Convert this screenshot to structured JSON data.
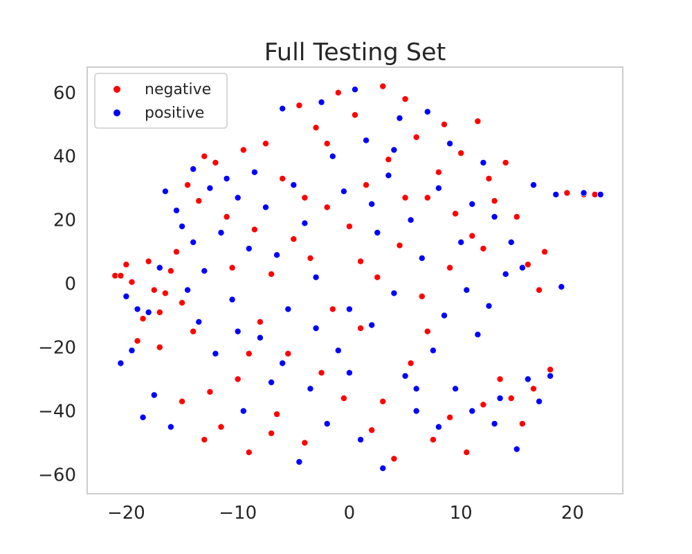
{
  "chart_data": {
    "type": "scatter",
    "title": "Full Testing Set",
    "xlabel": "",
    "ylabel": "",
    "xlim": [
      -23.5,
      24.5
    ],
    "ylim": [
      -66,
      68
    ],
    "xticks": [
      -20,
      -10,
      0,
      10,
      20
    ],
    "xtick_labels": [
      "−20",
      "−10",
      "0",
      "10",
      "20"
    ],
    "yticks": [
      60,
      40,
      20,
      0,
      -20,
      -40,
      -60
    ],
    "ytick_labels": [
      "60",
      "40",
      "20",
      "0",
      "−20",
      "−40",
      "−60"
    ],
    "grid": false,
    "legend_position": "top-left",
    "series": [
      {
        "name": "negative",
        "color": "#ff0000",
        "points": [
          [
            -21,
            2.5
          ],
          [
            -20.5,
            2.5
          ],
          [
            -20,
            6
          ],
          [
            -19.5,
            0.5
          ],
          [
            -19,
            -18
          ],
          [
            -18.5,
            -11
          ],
          [
            -18,
            7
          ],
          [
            -17.5,
            -2
          ],
          [
            -17,
            -20
          ],
          [
            -16.5,
            -3
          ],
          [
            -16,
            4
          ],
          [
            -15.5,
            10
          ],
          [
            -15,
            -6
          ],
          [
            -14.5,
            31
          ],
          [
            -14,
            -15
          ],
          [
            -13.5,
            26
          ],
          [
            -13,
            40
          ],
          [
            -12.5,
            -34
          ],
          [
            -12,
            38
          ],
          [
            -11.5,
            -45
          ],
          [
            -11,
            21
          ],
          [
            -10.5,
            5
          ],
          [
            -10,
            -30
          ],
          [
            -9.5,
            42
          ],
          [
            -9,
            -53
          ],
          [
            -8.5,
            17
          ],
          [
            -8,
            -12
          ],
          [
            -7.5,
            44
          ],
          [
            -7,
            3
          ],
          [
            -6.5,
            -41
          ],
          [
            -6,
            33
          ],
          [
            -5.5,
            -22
          ],
          [
            -5,
            14
          ],
          [
            -4.5,
            56
          ],
          [
            -4,
            -50
          ],
          [
            -3.5,
            8
          ],
          [
            -3,
            49
          ],
          [
            -2.5,
            -28
          ],
          [
            -2,
            24
          ],
          [
            -1.5,
            -8
          ],
          [
            -1,
            60
          ],
          [
            -0.5,
            -36
          ],
          [
            0,
            18
          ],
          [
            0.5,
            53
          ],
          [
            1,
            -14
          ],
          [
            1.5,
            31
          ],
          [
            2,
            -46
          ],
          [
            2.5,
            2
          ],
          [
            3,
            62
          ],
          [
            3.5,
            39
          ],
          [
            4,
            -55
          ],
          [
            4.5,
            12
          ],
          [
            5,
            58
          ],
          [
            5.5,
            -25
          ],
          [
            6,
            46
          ],
          [
            6.5,
            -4
          ],
          [
            7,
            27
          ],
          [
            7.5,
            -49
          ],
          [
            8,
            35
          ],
          [
            8.5,
            50
          ],
          [
            9,
            -42
          ],
          [
            9.5,
            22
          ],
          [
            10,
            41
          ],
          [
            10.5,
            -53
          ],
          [
            11,
            15
          ],
          [
            11.5,
            51
          ],
          [
            12,
            -38
          ],
          [
            12.5,
            33
          ],
          [
            13,
            26
          ],
          [
            13.5,
            -30
          ],
          [
            14,
            38
          ],
          [
            14.5,
            -36
          ],
          [
            15,
            21
          ],
          [
            15.5,
            -44
          ],
          [
            16,
            6
          ],
          [
            16.5,
            -33
          ],
          [
            17,
            -2
          ],
          [
            17.5,
            10
          ],
          [
            18,
            -27
          ],
          [
            19.5,
            28.5
          ],
          [
            21,
            28
          ],
          [
            22,
            28
          ],
          [
            -17,
            -9
          ],
          [
            -15,
            -37
          ],
          [
            -13,
            -49
          ],
          [
            -9,
            -22
          ],
          [
            -7,
            -47
          ],
          [
            -4,
            27
          ],
          [
            -2,
            44
          ],
          [
            1,
            7
          ],
          [
            3,
            -37
          ],
          [
            5,
            27
          ],
          [
            7,
            -15
          ],
          [
            9,
            5
          ],
          [
            12,
            11
          ]
        ]
      },
      {
        "name": "positive",
        "color": "#0000ff",
        "points": [
          [
            -20.5,
            -25
          ],
          [
            -20,
            -4
          ],
          [
            -19.5,
            -21
          ],
          [
            -19,
            -8
          ],
          [
            -18.5,
            -42
          ],
          [
            -18,
            -9
          ],
          [
            -17.5,
            -35
          ],
          [
            -17,
            5
          ],
          [
            -16.5,
            29
          ],
          [
            -16,
            -45
          ],
          [
            -15.5,
            23
          ],
          [
            -15,
            18
          ],
          [
            -14.5,
            -2
          ],
          [
            -14,
            36
          ],
          [
            -13.5,
            -12
          ],
          [
            -13,
            4
          ],
          [
            -12.5,
            30
          ],
          [
            -12,
            -22
          ],
          [
            -11.5,
            16
          ],
          [
            -11,
            33
          ],
          [
            -10.5,
            -5
          ],
          [
            -10,
            27
          ],
          [
            -9.5,
            -40
          ],
          [
            -9,
            11
          ],
          [
            -8.5,
            35
          ],
          [
            -8,
            -17
          ],
          [
            -7.5,
            24
          ],
          [
            -7,
            -31
          ],
          [
            -6.5,
            9
          ],
          [
            -6,
            55
          ],
          [
            -5.5,
            -8
          ],
          [
            -5,
            31
          ],
          [
            -4.5,
            -56
          ],
          [
            -4,
            19
          ],
          [
            -3.5,
            -33
          ],
          [
            -3,
            2
          ],
          [
            -2.5,
            57
          ],
          [
            -2,
            -44
          ],
          [
            -1.5,
            40
          ],
          [
            -1,
            -21
          ],
          [
            -0.5,
            29
          ],
          [
            0,
            -8
          ],
          [
            0.5,
            61
          ],
          [
            1,
            -49
          ],
          [
            1.5,
            45
          ],
          [
            2,
            -13
          ],
          [
            2.5,
            16
          ],
          [
            3,
            -58
          ],
          [
            3.5,
            34
          ],
          [
            4,
            -3
          ],
          [
            4.5,
            52
          ],
          [
            5,
            -29
          ],
          [
            5.5,
            20
          ],
          [
            6,
            -40
          ],
          [
            6.5,
            8
          ],
          [
            7,
            54
          ],
          [
            7.5,
            -21
          ],
          [
            8,
            30
          ],
          [
            8.5,
            -10
          ],
          [
            9,
            44
          ],
          [
            9.5,
            -33
          ],
          [
            10,
            13
          ],
          [
            10.5,
            -2
          ],
          [
            11,
            25
          ],
          [
            11.5,
            -16
          ],
          [
            12,
            38
          ],
          [
            12.5,
            -7
          ],
          [
            13,
            21
          ],
          [
            13.5,
            -36
          ],
          [
            14,
            3
          ],
          [
            14.5,
            13
          ],
          [
            15,
            -52
          ],
          [
            15.5,
            5
          ],
          [
            16,
            -30
          ],
          [
            16.5,
            31
          ],
          [
            17,
            -37
          ],
          [
            18,
            -29
          ],
          [
            18.5,
            28
          ],
          [
            19,
            -1
          ],
          [
            21,
            28.5
          ],
          [
            22.5,
            28
          ],
          [
            -14,
            13
          ],
          [
            -10,
            -15
          ],
          [
            -6,
            -25
          ],
          [
            -3,
            -14
          ],
          [
            0,
            -28
          ],
          [
            2,
            25
          ],
          [
            4,
            42
          ],
          [
            6,
            -33
          ],
          [
            8,
            -45
          ],
          [
            11,
            -40
          ],
          [
            13,
            -44
          ]
        ]
      }
    ]
  }
}
